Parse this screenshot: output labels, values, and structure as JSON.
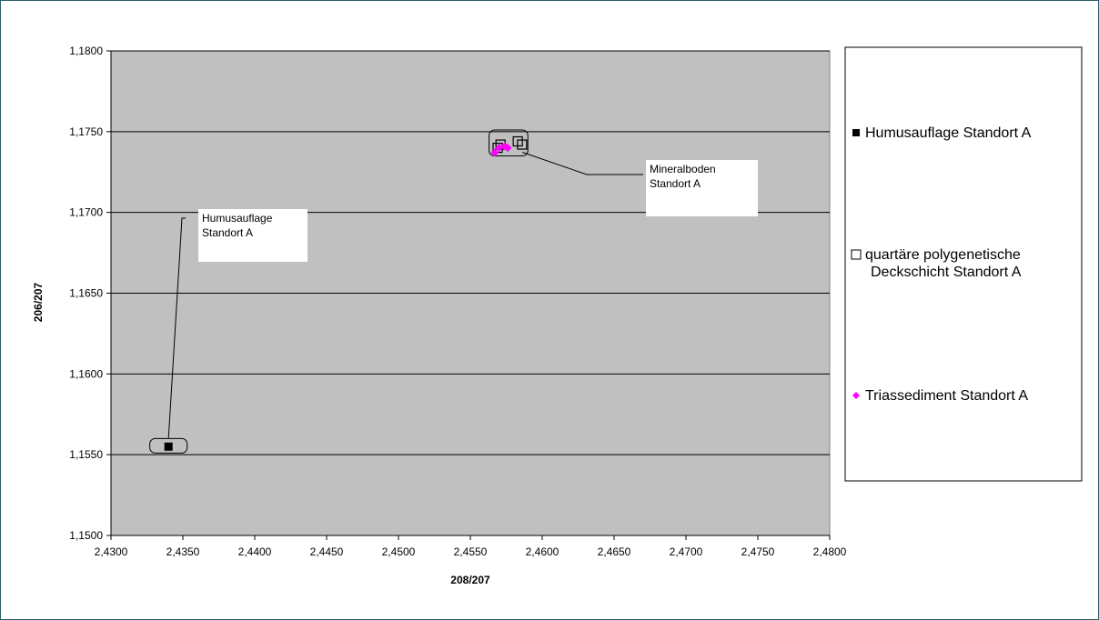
{
  "chart_data": {
    "type": "scatter",
    "title": "",
    "xlabel": "208/207",
    "ylabel": "206/207",
    "xlim": [
      2.43,
      2.48
    ],
    "ylim": [
      1.15,
      1.18
    ],
    "x_ticks": [
      2.43,
      2.435,
      2.44,
      2.445,
      2.45,
      2.455,
      2.46,
      2.465,
      2.47,
      2.475,
      2.48
    ],
    "y_ticks": [
      1.15,
      1.155,
      1.16,
      1.165,
      1.17,
      1.175,
      1.18
    ],
    "x_tick_labels": [
      "2,4300",
      "2,4350",
      "2,4400",
      "2,4450",
      "2,4500",
      "2,4550",
      "2,4600",
      "2,4650",
      "2,4700",
      "2,4750",
      "2,4800"
    ],
    "y_tick_labels": [
      "1,1500",
      "1,1550",
      "1,1600",
      "1,1650",
      "1,1700",
      "1,1750",
      "1,1800"
    ],
    "grid": "horizontal",
    "plot_background": "#c0c0c0",
    "legend_position": "right",
    "series": [
      {
        "name": "Humusauflage Standort A",
        "marker": "filled-square",
        "color": "#000000",
        "points": [
          [
            2.434,
            1.1555
          ]
        ]
      },
      {
        "name": "quartäre polygenetische Deckschicht Standort A",
        "marker": "open-square",
        "color": "#000000",
        "points": [
          [
            2.4571,
            1.1742
          ],
          [
            2.4583,
            1.1744
          ],
          [
            2.4586,
            1.1742
          ],
          [
            2.4569,
            1.174
          ]
        ]
      },
      {
        "name": "Triassediment Standort A",
        "marker": "diamond",
        "color": "#ff00ff",
        "points": [
          [
            2.4567,
            1.1737
          ],
          [
            2.457,
            1.174
          ],
          [
            2.4574,
            1.1741
          ],
          [
            2.4576,
            1.174
          ]
        ]
      }
    ],
    "annotations": [
      {
        "lines": [
          "Humusauflage",
          "Standort A"
        ],
        "target": [
          2.434,
          1.1555
        ],
        "target_range": {
          "x": [
            2.4327,
            2.4353
          ],
          "y": [
            1.1551,
            1.156
          ]
        }
      },
      {
        "lines": [
          "Mineralboden",
          "Standort A"
        ],
        "target": [
          2.4578,
          1.1742
        ],
        "target_range": {
          "x": [
            2.4563,
            2.459
          ],
          "y": [
            1.1735,
            1.1751
          ]
        }
      }
    ]
  }
}
